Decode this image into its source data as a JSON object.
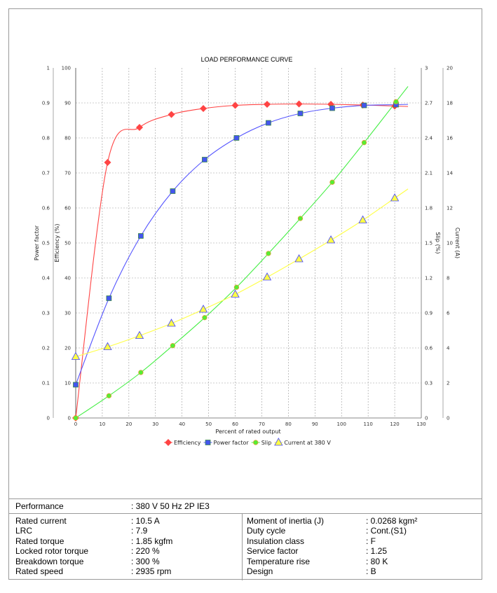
{
  "chart_data": {
    "type": "line",
    "title": "LOAD PERFORMANCE CURVE",
    "xlabel": "Percent of rated output",
    "xlim": [
      0,
      130
    ],
    "xticks": [
      0,
      10,
      20,
      30,
      40,
      50,
      60,
      70,
      80,
      90,
      100,
      110,
      120,
      130
    ],
    "grid": true,
    "legend_position": "bottom",
    "axes": {
      "power_factor": {
        "label": "Power factor",
        "side": "left-outer",
        "lim": [
          0,
          1
        ],
        "ticks": [
          "0",
          "0.1",
          "0.2",
          "0.3",
          "0.4",
          "0.5",
          "0.6",
          "0.7",
          "0.8",
          "0.9",
          "1"
        ]
      },
      "efficiency": {
        "label": "Efficiency (%)",
        "side": "left",
        "lim": [
          0,
          100
        ],
        "ticks": [
          "0",
          "10",
          "20",
          "30",
          "40",
          "50",
          "60",
          "70",
          "80",
          "90",
          "100"
        ]
      },
      "slip": {
        "label": "Slip (%)",
        "side": "right",
        "lim": [
          0,
          3
        ],
        "ticks": [
          "0",
          "0.3",
          "0.6",
          "0.9",
          "1.2",
          "1.5",
          "1.8",
          "2.1",
          "2.4",
          "2.7",
          "3"
        ]
      },
      "current": {
        "label": "Current (A)",
        "side": "right-outer",
        "lim": [
          0,
          20
        ],
        "ticks": [
          "0",
          "2",
          "4",
          "6",
          "8",
          "10",
          "12",
          "14",
          "16",
          "18",
          "20"
        ]
      }
    },
    "series": [
      {
        "name": "Efficiency",
        "axis": "efficiency",
        "color": "#ff4444",
        "marker": "diamond",
        "x": [
          0,
          12,
          24,
          36,
          48,
          60,
          72,
          84,
          96,
          108,
          120
        ],
        "values": [
          0,
          73,
          83,
          86.7,
          88.4,
          89.3,
          89.6,
          89.7,
          89.6,
          89.4,
          89.1
        ]
      },
      {
        "name": "Power factor",
        "axis": "power_factor",
        "color": "#5555ff",
        "marker": "square",
        "x": [
          0,
          12.5,
          24.5,
          36.5,
          48.5,
          60.5,
          72.5,
          84.5,
          96.5,
          108.5,
          120.5
        ],
        "values": [
          0.095,
          0.342,
          0.52,
          0.648,
          0.738,
          0.8,
          0.843,
          0.87,
          0.885,
          0.893,
          0.895
        ]
      },
      {
        "name": "Slip",
        "axis": "slip",
        "color": "#44ee44",
        "marker": "circle",
        "x": [
          0,
          12.5,
          24.5,
          36.5,
          48.5,
          60.5,
          72.5,
          84.5,
          96.5,
          108.5,
          120.5
        ],
        "values": [
          0,
          0.19,
          0.39,
          0.62,
          0.86,
          1.12,
          1.41,
          1.71,
          2.02,
          2.36,
          2.71
        ]
      },
      {
        "name": "Current at 380 V",
        "axis": "current",
        "color": "#ffff44",
        "marker": "triangle",
        "x": [
          0,
          12,
          24,
          36,
          48,
          60,
          72,
          84,
          96,
          108,
          120
        ],
        "values": [
          3.5,
          4.06,
          4.7,
          5.4,
          6.2,
          7.06,
          8.04,
          9.08,
          10.16,
          11.3,
          12.56
        ]
      }
    ]
  },
  "table": {
    "performance": {
      "label": "Performance",
      "value": ": 380 V 50 Hz 2P IE3"
    },
    "left": [
      {
        "label": "Rated current",
        "value": ": 10.5 A"
      },
      {
        "label": "LRC",
        "value": ": 7.9"
      },
      {
        "label": "Rated torque",
        "value": ": 1.85 kgfm"
      },
      {
        "label": "Locked rotor torque",
        "value": ": 220 %"
      },
      {
        "label": "Breakdown torque",
        "value": ": 300 %"
      },
      {
        "label": "Rated speed",
        "value": ": 2935 rpm"
      }
    ],
    "right": [
      {
        "label": "Moment of inertia (J)",
        "value": ": 0.0268 kgm²"
      },
      {
        "label": "Duty cycle",
        "value": ": Cont.(S1)"
      },
      {
        "label": "Insulation class",
        "value": ": F"
      },
      {
        "label": "Service factor",
        "value": ": 1.25"
      },
      {
        "label": "Temperature rise",
        "value": ": 80 K"
      },
      {
        "label": "Design",
        "value": ": B"
      }
    ]
  }
}
